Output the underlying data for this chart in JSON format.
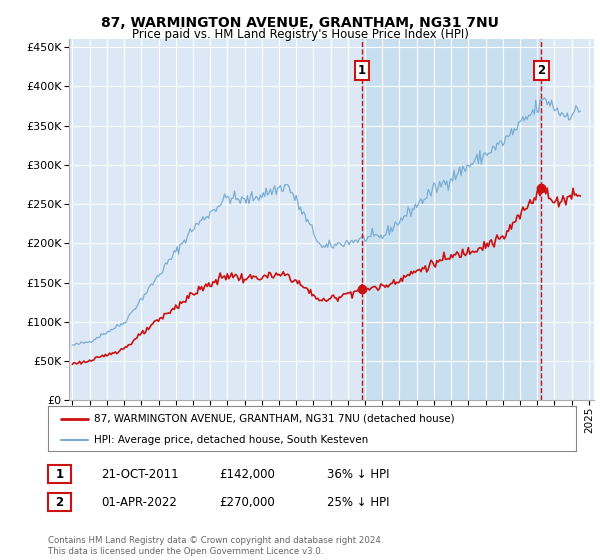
{
  "title": "87, WARMINGTON AVENUE, GRANTHAM, NG31 7NU",
  "subtitle": "Price paid vs. HM Land Registry's House Price Index (HPI)",
  "ylim": [
    0,
    460000
  ],
  "yticks": [
    0,
    50000,
    100000,
    150000,
    200000,
    250000,
    300000,
    350000,
    400000,
    450000
  ],
  "xlim_start": 1994.8,
  "xlim_end": 2025.3,
  "background_color": "#ffffff",
  "plot_bg_color": "#dce8f5",
  "grid_color": "#ffffff",
  "hpi_color": "#7aadd4",
  "price_color": "#cc1111",
  "shade_color": "#c8dff0",
  "marker1_x": 2011.8,
  "marker1_y": 142000,
  "marker2_x": 2022.25,
  "marker2_y": 270000,
  "annotation1_date": "21-OCT-2011",
  "annotation1_price": "£142,000",
  "annotation1_hpi": "36% ↓ HPI",
  "annotation2_date": "01-APR-2022",
  "annotation2_price": "£270,000",
  "annotation2_hpi": "25% ↓ HPI",
  "legend_label1": "87, WARMINGTON AVENUE, GRANTHAM, NG31 7NU (detached house)",
  "legend_label2": "HPI: Average price, detached house, South Kesteven",
  "footer": "Contains HM Land Registry data © Crown copyright and database right 2024.\nThis data is licensed under the Open Government Licence v3.0."
}
